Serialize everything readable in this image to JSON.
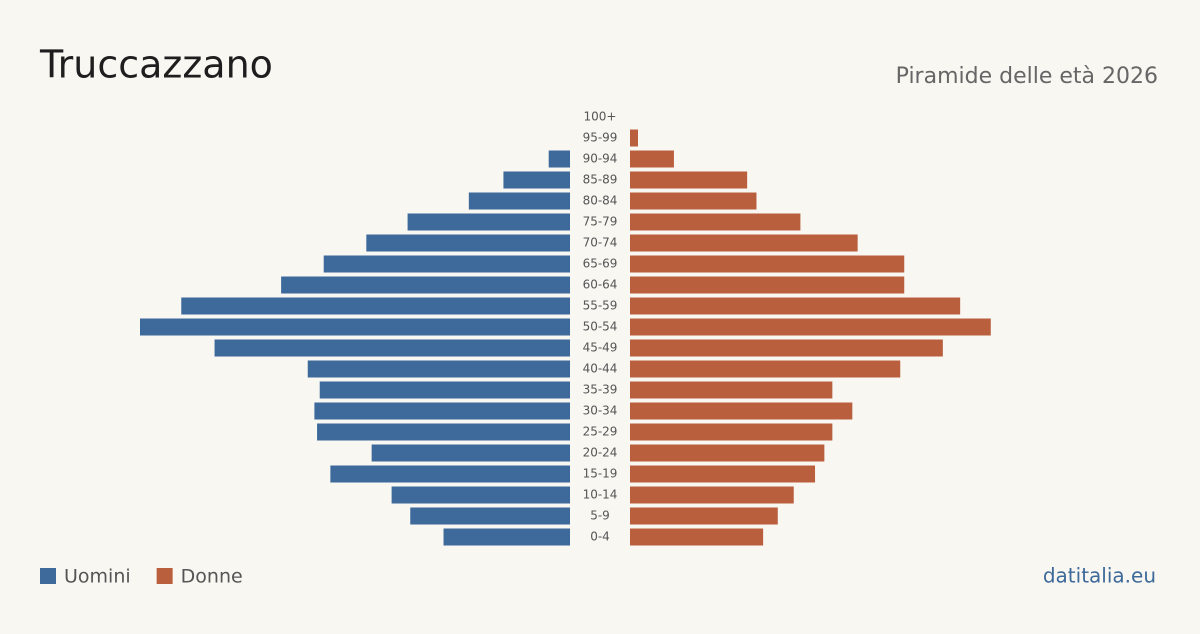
{
  "chart_data": {
    "type": "pyramid",
    "title": "Truccazzano",
    "subtitle": "Piramide delle età 2026",
    "source": "datitalia.eu",
    "categories": [
      "100+",
      "95-99",
      "90-94",
      "85-89",
      "80-84",
      "75-79",
      "70-74",
      "65-69",
      "60-64",
      "55-59",
      "50-54",
      "45-49",
      "40-44",
      "35-39",
      "30-34",
      "25-29",
      "20-24",
      "15-19",
      "10-14",
      "5-9",
      "0-4"
    ],
    "series": [
      {
        "name": "Uomini",
        "color": "#3d6a9a",
        "values": [
          0,
          0,
          16,
          50,
          76,
          122,
          153,
          185,
          217,
          292,
          323,
          267,
          197,
          188,
          192,
          190,
          149,
          180,
          134,
          120,
          95
        ]
      },
      {
        "name": "Donne",
        "color": "#b95f3d",
        "values": [
          0,
          6,
          33,
          88,
          95,
          128,
          171,
          206,
          206,
          248,
          271,
          235,
          203,
          152,
          167,
          152,
          146,
          139,
          123,
          111,
          100
        ]
      }
    ]
  }
}
